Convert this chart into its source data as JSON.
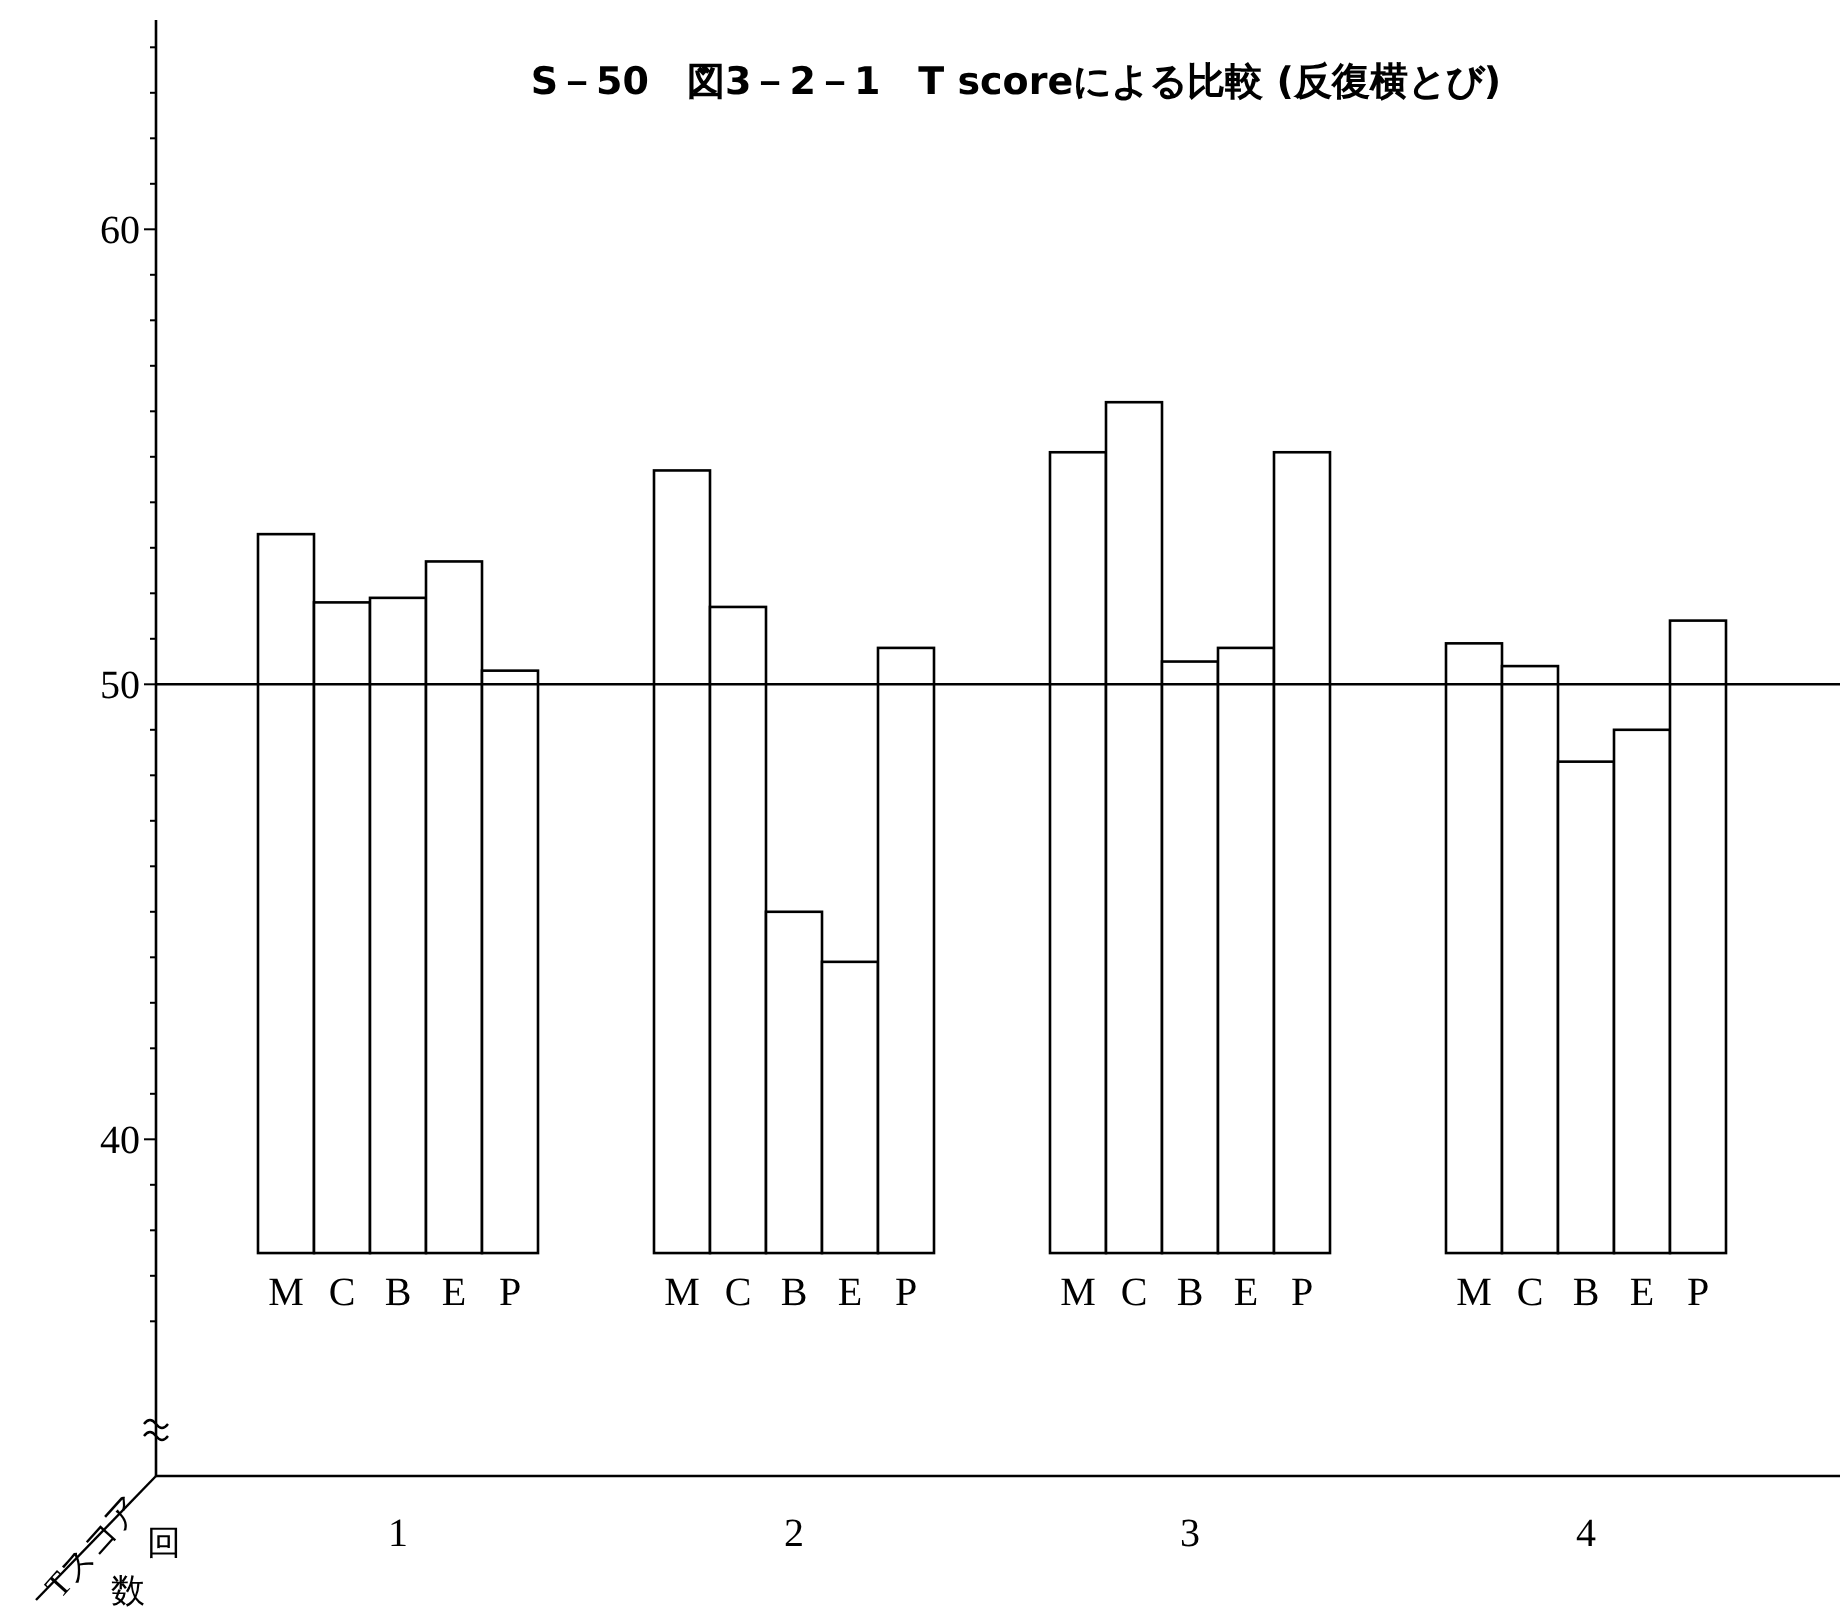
{
  "chart_data": {
    "type": "bar",
    "title": "S－50　図3－2－1　T scoreによる比較 (反復横とび)",
    "xlabel": "回数",
    "ylabel": "Tスコア",
    "categories": [
      "1",
      "2",
      "3",
      "4"
    ],
    "series": [
      {
        "name": "M",
        "color": "#ffffff",
        "base": [
          37.5,
          37.5,
          37.5,
          37.5
        ],
        "values": [
          15.8,
          17.2,
          17.6,
          13.4
        ]
      },
      {
        "name": "C",
        "color": "#ffffff",
        "base": [
          37.5,
          37.5,
          37.5,
          37.5
        ],
        "values": [
          14.3,
          14.2,
          18.7,
          12.9
        ]
      },
      {
        "name": "B",
        "color": "#ffffff",
        "base": [
          37.5,
          37.5,
          37.5,
          37.5
        ],
        "values": [
          14.4,
          7.5,
          13.0,
          10.8
        ]
      },
      {
        "name": "E",
        "color": "#ffffff",
        "base": [
          37.5,
          37.5,
          37.5,
          37.5
        ],
        "values": [
          15.2,
          6.4,
          13.3,
          11.5
        ]
      },
      {
        "name": "P",
        "color": "#ffffff",
        "base": [
          37.5,
          37.5,
          37.5,
          37.5
        ],
        "values": [
          12.8,
          13.3,
          17.6,
          13.9
        ]
      }
    ],
    "ylim": [
      32.6,
      64.6
    ],
    "yticks": [
      {
        "value": 36,
        "label": null
      },
      {
        "value": 37,
        "label": null
      },
      {
        "value": 38,
        "label": null
      },
      {
        "value": 39,
        "label": null
      },
      40,
      {
        "value": 41,
        "label": null
      },
      {
        "value": 42,
        "label": null
      },
      {
        "value": 43,
        "label": null
      },
      {
        "value": 44,
        "label": null
      },
      {
        "value": 45,
        "label": null
      },
      {
        "value": 46,
        "label": null
      },
      {
        "value": 47,
        "label": null
      },
      {
        "value": 48,
        "label": null
      },
      {
        "value": 49,
        "label": null
      },
      50,
      {
        "value": 51,
        "label": null
      },
      {
        "value": 52,
        "label": null
      },
      {
        "value": 53,
        "label": null
      },
      {
        "value": 54,
        "label": null
      },
      {
        "value": 55,
        "label": null
      },
      {
        "value": 56,
        "label": null
      },
      {
        "value": 57,
        "label": null
      },
      {
        "value": 58,
        "label": null
      },
      {
        "value": 59,
        "label": null
      },
      60,
      {
        "value": 61,
        "label": null
      },
      {
        "value": 62,
        "label": null
      },
      {
        "value": 63,
        "label": null
      },
      {
        "value": 64,
        "label": null
      }
    ],
    "ref_lines": [
      {
        "axis": "y",
        "value": 50,
        "color": "#000000"
      }
    ],
    "legend": false,
    "grid": false
  }
}
